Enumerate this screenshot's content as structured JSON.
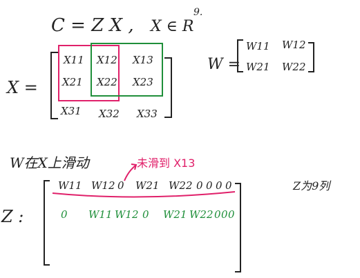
{
  "equation": {
    "text": "C = Z X ,",
    "domain": "X ∈ R",
    "exp": "9."
  },
  "x_matrix": {
    "label": "X =",
    "rows": [
      [
        "X11",
        "X12",
        "X13"
      ],
      [
        "X21",
        "X22",
        "X23"
      ],
      [
        "X31",
        "X32",
        "X33"
      ]
    ]
  },
  "w_matrix": {
    "label": "W =",
    "rows": [
      [
        "W11",
        "W12"
      ],
      [
        "W21",
        "W22"
      ]
    ]
  },
  "note": {
    "sliding": "W在X上滑动",
    "pink_note": "未滑到 X13"
  },
  "z_matrix": {
    "label": "Z :",
    "row1": [
      "W11",
      "W12",
      "0",
      "W21",
      "W22",
      "0",
      "0",
      "0",
      "0"
    ],
    "row2": [
      "0",
      "W11",
      "W12",
      "0",
      "W21",
      "W22",
      "0",
      "0",
      "0"
    ]
  },
  "side_note": "Z为9列",
  "colors": {
    "ink": "#222222",
    "pink": "#e0206a",
    "green": "#1f8f3a"
  }
}
